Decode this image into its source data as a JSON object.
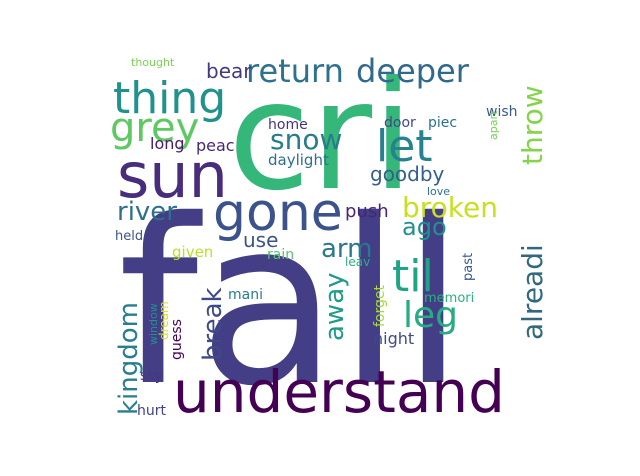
{
  "words": [
    {
      "text": "fall",
      "color": "#433e85"
    },
    {
      "text": "cri",
      "color": "#35b779"
    },
    {
      "text": "understand",
      "color": "#440154"
    },
    {
      "text": "gone",
      "color": "#3b528b"
    },
    {
      "text": "sun",
      "color": "#472d7b"
    },
    {
      "text": "thing",
      "color": "#21918c"
    },
    {
      "text": "return",
      "color": "#2c728e"
    },
    {
      "text": "deeper",
      "color": "#31688e"
    },
    {
      "text": "grey",
      "color": "#5ec962"
    },
    {
      "text": "let",
      "color": "#26828e"
    },
    {
      "text": "snow",
      "color": "#287c8e"
    },
    {
      "text": "til",
      "color": "#20a486"
    },
    {
      "text": "leg",
      "color": "#25ac82"
    },
    {
      "text": "broken",
      "color": "#c8e020"
    },
    {
      "text": "alreadi",
      "color": "#30697e"
    },
    {
      "text": "throw",
      "color": "#84d44b"
    },
    {
      "text": "kingdom",
      "color": "#287d8e"
    },
    {
      "text": "break",
      "color": "#3e4989"
    },
    {
      "text": "away",
      "color": "#1e9b8a"
    },
    {
      "text": "arm",
      "color": "#2a788e"
    },
    {
      "text": "river",
      "color": "#2d708e"
    },
    {
      "text": "ago",
      "color": "#20928c"
    },
    {
      "text": "bear",
      "color": "#443983"
    },
    {
      "text": "goodby",
      "color": "#355f8d"
    },
    {
      "text": "push",
      "color": "#482475"
    },
    {
      "text": "use",
      "color": "#3b528b"
    },
    {
      "text": "long",
      "color": "#481a6c"
    },
    {
      "text": "peac",
      "color": "#482878"
    },
    {
      "text": "home",
      "color": "#46327e"
    },
    {
      "text": "daylight",
      "color": "#2e6e8e"
    },
    {
      "text": "door",
      "color": "#3f4788"
    },
    {
      "text": "piec",
      "color": "#2c718e"
    },
    {
      "text": "wish",
      "color": "#38598c"
    },
    {
      "text": "apart",
      "color": "#75d054"
    },
    {
      "text": "thought",
      "color": "#7ad151"
    },
    {
      "text": "held",
      "color": "#3b528b"
    },
    {
      "text": "given",
      "color": "#bddf26"
    },
    {
      "text": "rain",
      "color": "#52c569"
    },
    {
      "text": "leav",
      "color": "#29af7f"
    },
    {
      "text": "love",
      "color": "#2c728e"
    },
    {
      "text": "past",
      "color": "#38588c"
    },
    {
      "text": "forget",
      "color": "#a5db36"
    },
    {
      "text": "memori",
      "color": "#2ab07f"
    },
    {
      "text": "mani",
      "color": "#287c8e"
    },
    {
      "text": "night",
      "color": "#3e4a89"
    },
    {
      "text": "guess",
      "color": "#440154"
    },
    {
      "text": "dream",
      "color": "#d8e219"
    },
    {
      "text": "window",
      "color": "#21918c"
    },
    {
      "text": "sky",
      "color": "#453882"
    },
    {
      "text": "hurt",
      "color": "#414287"
    }
  ]
}
